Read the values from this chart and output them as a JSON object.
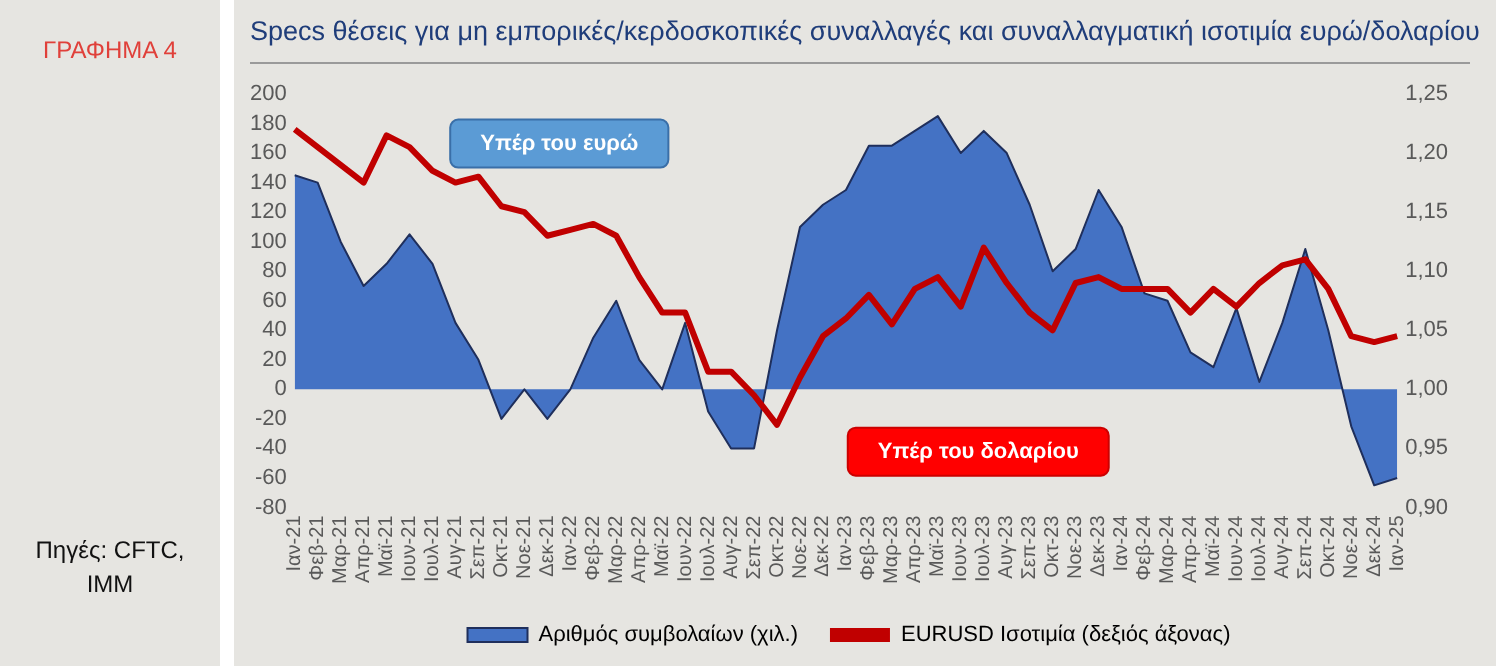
{
  "chart_data": {
    "type": "area",
    "title": "Specs θέσεις για μη εμπορικές/κερδοσκοπικές συναλλαγές και συναλλαγματική ισοτιμία ευρώ/δολαρίου",
    "categories": [
      "Ιαν-21",
      "Φεβ-21",
      "Μαρ-21",
      "Απρ-21",
      "Μαϊ-21",
      "Ιουν-21",
      "Ιουλ-21",
      "Αυγ-21",
      "Σεπ-21",
      "Οκτ-21",
      "Νοε-21",
      "Δεκ-21",
      "Ιαν-22",
      "Φεβ-22",
      "Μαρ-22",
      "Απρ-22",
      "Μαϊ-22",
      "Ιουν-22",
      "Ιουλ-22",
      "Αυγ-22",
      "Σεπ-22",
      "Οκτ-22",
      "Νοε-22",
      "Δεκ-22",
      "Ιαν-23",
      "Φεβ-23",
      "Μαρ-23",
      "Απρ-23",
      "Μαϊ-23",
      "Ιουν-23",
      "Ιουλ-23",
      "Αυγ-23",
      "Σεπ-23",
      "Οκτ-23",
      "Νοε-23",
      "Δεκ-23",
      "Ιαν-24",
      "Φεβ-24",
      "Μαρ-24",
      "Απρ-24",
      "Μαϊ-24",
      "Ιουν-24",
      "Ιουλ-24",
      "Αυγ-24",
      "Σεπ-24",
      "Οκτ-24",
      "Νοε-24",
      "Δεκ-24",
      "Ιαν-25"
    ],
    "series": [
      {
        "name": "Αριθμός συμβολαίων (χιλ.)",
        "type": "area",
        "color": "#4472c4",
        "values": [
          145,
          140,
          100,
          70,
          85,
          105,
          85,
          45,
          20,
          -20,
          0,
          -20,
          0,
          35,
          60,
          20,
          0,
          45,
          -15,
          -40,
          -40,
          40,
          110,
          125,
          135,
          165,
          165,
          175,
          185,
          160,
          175,
          160,
          125,
          80,
          95,
          135,
          110,
          65,
          60,
          25,
          15,
          55,
          5,
          45,
          95,
          40,
          -25,
          -65,
          -60
        ]
      },
      {
        "name": "EURUSD Ισοτιμία (δεξιός άξονας)",
        "type": "line",
        "axis": "y2",
        "color": "#c00000",
        "values": [
          1.22,
          1.205,
          1.19,
          1.175,
          1.215,
          1.205,
          1.185,
          1.175,
          1.18,
          1.155,
          1.15,
          1.13,
          1.135,
          1.14,
          1.13,
          1.095,
          1.065,
          1.065,
          1.015,
          1.015,
          0.995,
          0.97,
          1.01,
          1.045,
          1.06,
          1.08,
          1.055,
          1.085,
          1.095,
          1.07,
          1.12,
          1.09,
          1.065,
          1.05,
          1.09,
          1.095,
          1.085,
          1.085,
          1.085,
          1.065,
          1.085,
          1.07,
          1.09,
          1.105,
          1.11,
          1.085,
          1.045,
          1.04,
          1.045
        ]
      }
    ],
    "ylim": [
      -80,
      200
    ],
    "yticks": [
      -80,
      -60,
      -40,
      -20,
      0,
      20,
      40,
      60,
      80,
      100,
      120,
      140,
      160,
      180,
      200
    ],
    "y2lim": [
      0.9,
      1.25
    ],
    "y2ticks": [
      {
        "value": 0.9,
        "label": "0,90"
      },
      {
        "value": 0.95,
        "label": "0,95"
      },
      {
        "value": 1.0,
        "label": "1,00"
      },
      {
        "value": 1.05,
        "label": "1,05"
      },
      {
        "value": 1.1,
        "label": "1,10"
      },
      {
        "value": 1.15,
        "label": "1,15"
      },
      {
        "value": 1.2,
        "label": "1,20"
      },
      {
        "value": 1.25,
        "label": "1,25"
      }
    ],
    "grid": false,
    "legend": "bottom",
    "annotations": [
      "ΓΡΑΦΗΜΑ 4",
      "Πηγές: CFTC, IMM",
      "Υπέρ του ευρώ",
      "Υπέρ του δολαρίου"
    ]
  }
}
